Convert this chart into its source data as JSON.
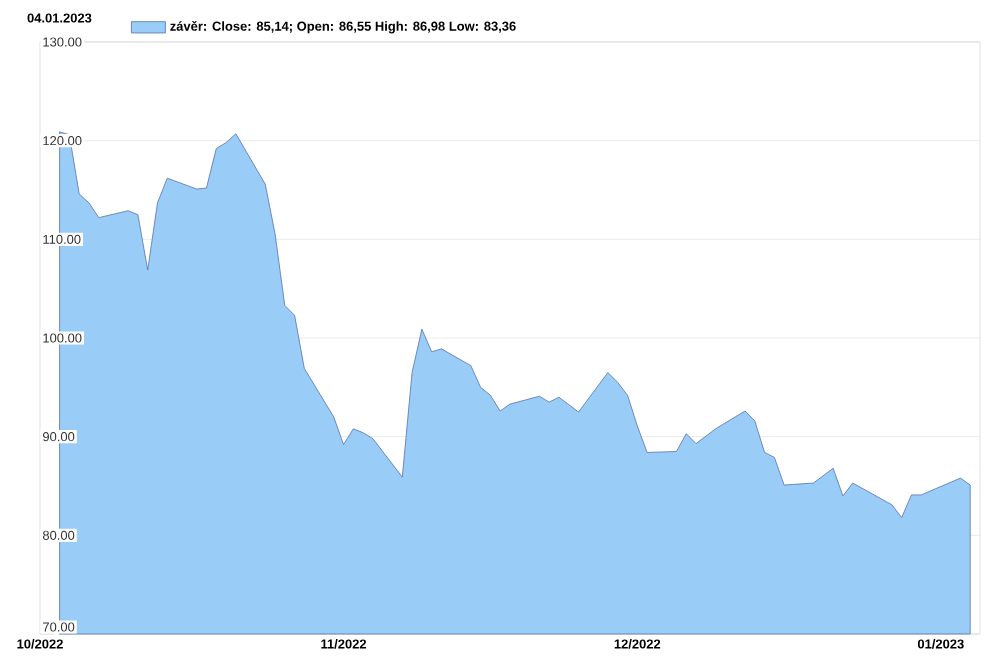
{
  "chart_data": {
    "type": "area",
    "annotations": [
      "04.01.2023"
    ],
    "x": [
      "2022-10-03",
      "2022-10-04",
      "2022-10-05",
      "2022-10-06",
      "2022-10-07",
      "2022-10-10",
      "2022-10-11",
      "2022-10-12",
      "2022-10-13",
      "2022-10-14",
      "2022-10-17",
      "2022-10-18",
      "2022-10-19",
      "2022-10-20",
      "2022-10-21",
      "2022-10-24",
      "2022-10-25",
      "2022-10-26",
      "2022-10-27",
      "2022-10-28",
      "2022-10-31",
      "2022-11-01",
      "2022-11-02",
      "2022-11-03",
      "2022-11-04",
      "2022-11-07",
      "2022-11-08",
      "2022-11-09",
      "2022-11-10",
      "2022-11-11",
      "2022-11-14",
      "2022-11-15",
      "2022-11-16",
      "2022-11-17",
      "2022-11-18",
      "2022-11-21",
      "2022-11-22",
      "2022-11-23",
      "2022-11-25",
      "2022-11-28",
      "2022-11-29",
      "2022-11-30",
      "2022-12-01",
      "2022-12-02",
      "2022-12-05",
      "2022-12-06",
      "2022-12-07",
      "2022-12-09",
      "2022-12-12",
      "2022-12-13",
      "2022-12-14",
      "2022-12-15",
      "2022-12-16",
      "2022-12-19",
      "2022-12-21",
      "2022-12-22",
      "2022-12-23",
      "2022-12-27",
      "2022-12-28",
      "2022-12-29",
      "2022-12-30",
      "2023-01-03",
      "2023-01-04"
    ],
    "series": [
      {
        "name": "závěr: Close: 85,14; Open: 86,55 High: 86,98 Low: 83,36",
        "color": "#99ccf7",
        "values": [
          120.9,
          120.6,
          114.6,
          113.7,
          112.2,
          112.9,
          112.5,
          106.9,
          113.7,
          116.2,
          115.1,
          115.2,
          119.2,
          119.8,
          120.7,
          115.6,
          110.6,
          103.3,
          102.3,
          96.9,
          92.0,
          89.2,
          90.8,
          90.4,
          89.8,
          85.9,
          96.5,
          100.9,
          98.6,
          98.9,
          97.2,
          95.0,
          94.2,
          92.6,
          93.3,
          94.1,
          93.5,
          94.0,
          92.5,
          96.5,
          95.5,
          94.2,
          91.1,
          88.4,
          88.5,
          90.3,
          89.3,
          90.8,
          92.6,
          91.6,
          88.4,
          87.9,
          85.1,
          85.3,
          86.8,
          84.0,
          85.3,
          83.1,
          81.8,
          84.1,
          84.1,
          85.8,
          85.1
        ]
      }
    ],
    "xlim": [
      "2022-10-01",
      "2023-01-05"
    ],
    "xticks": [
      {
        "value": "2022-10-01",
        "label": "10/2022"
      },
      {
        "value": "2022-11-01",
        "label": "11/2022"
      },
      {
        "value": "2022-12-01",
        "label": "12/2022"
      },
      {
        "value": "2023-01-01",
        "label": "01/2023"
      }
    ],
    "ylim": [
      70,
      130
    ],
    "yticks": [
      {
        "value": 70,
        "label": "70.00"
      },
      {
        "value": 80,
        "label": "80.00"
      },
      {
        "value": 90,
        "label": "90.00"
      },
      {
        "value": 100,
        "label": "100.00"
      },
      {
        "value": 110,
        "label": "110.00"
      },
      {
        "value": 120,
        "label": "120.00"
      },
      {
        "value": 130,
        "label": "130.00"
      }
    ],
    "grid": "y",
    "legend": "top left"
  }
}
